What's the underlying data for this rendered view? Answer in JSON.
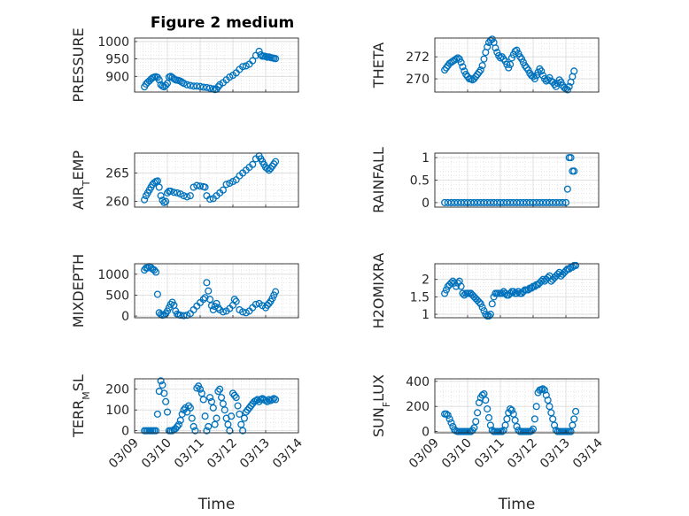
{
  "figure_title": "Figure 2 medium",
  "xlabel": "Time",
  "x_tick_labels": [
    "03/09",
    "03/10",
    "03/11",
    "03/12",
    "03/13",
    "03/14"
  ],
  "colors": {
    "marker": "#0072BD",
    "grid": "#d9d9d9",
    "axis": "#262626"
  },
  "chart_data": [
    {
      "type": "scatter",
      "name_label": "PRESSURE",
      "ylabel_parts": [
        "PRESSURE"
      ],
      "xlim": [
        0,
        5
      ],
      "ylim": [
        855,
        1010
      ],
      "yticks": [
        900,
        950,
        1000
      ],
      "grid": true,
      "x": [
        0.3,
        0.35,
        0.4,
        0.45,
        0.5,
        0.55,
        0.6,
        0.65,
        0.7,
        0.75,
        0.8,
        0.85,
        0.9,
        0.95,
        1.0,
        1.05,
        1.1,
        1.15,
        1.2,
        1.25,
        1.3,
        1.35,
        1.4,
        1.45,
        1.5,
        1.6,
        1.7,
        1.8,
        1.9,
        2.0,
        2.1,
        2.2,
        2.3,
        2.4,
        2.45,
        2.5,
        2.55,
        2.6,
        2.7,
        2.8,
        2.9,
        3.0,
        3.1,
        3.2,
        3.3,
        3.4,
        3.5,
        3.6,
        3.7,
        3.8,
        3.85,
        3.9,
        3.95,
        4.0,
        4.05,
        4.1,
        4.15,
        4.2,
        4.25,
        4.3
      ],
      "y": [
        870,
        878,
        883,
        887,
        892,
        896,
        898,
        899,
        897,
        890,
        876,
        872,
        870,
        874,
        880,
        898,
        900,
        897,
        893,
        890,
        889,
        888,
        886,
        883,
        880,
        876,
        874,
        872,
        872,
        871,
        869,
        868,
        866,
        864,
        862,
        863,
        870,
        876,
        882,
        890,
        898,
        903,
        910,
        920,
        928,
        930,
        935,
        945,
        960,
        972,
        962,
        958,
        958,
        957,
        955,
        956,
        954,
        953,
        952,
        951
      ]
    },
    {
      "type": "scatter",
      "name_label": "THETA",
      "ylabel_parts": [
        "THETA"
      ],
      "xlim": [
        0,
        5
      ],
      "ylim": [
        268.8,
        273.7
      ],
      "yticks": [
        270,
        272
      ],
      "grid": true,
      "x": [
        0.3,
        0.35,
        0.4,
        0.45,
        0.5,
        0.55,
        0.6,
        0.65,
        0.7,
        0.75,
        0.8,
        0.85,
        0.9,
        0.95,
        1.0,
        1.05,
        1.1,
        1.15,
        1.2,
        1.25,
        1.3,
        1.35,
        1.4,
        1.45,
        1.5,
        1.55,
        1.6,
        1.65,
        1.7,
        1.75,
        1.8,
        1.85,
        1.9,
        1.95,
        2.0,
        2.05,
        2.1,
        2.15,
        2.2,
        2.25,
        2.3,
        2.35,
        2.4,
        2.45,
        2.5,
        2.55,
        2.6,
        2.65,
        2.7,
        2.75,
        2.8,
        2.85,
        2.9,
        2.95,
        3.0,
        3.05,
        3.1,
        3.15,
        3.2,
        3.25,
        3.3,
        3.35,
        3.4,
        3.45,
        3.5,
        3.55,
        3.6,
        3.65,
        3.7,
        3.75,
        3.8,
        3.85,
        3.9,
        3.95,
        4.0,
        4.05,
        4.1,
        4.15,
        4.2,
        4.25
      ],
      "y": [
        270.8,
        271.0,
        271.2,
        271.4,
        271.5,
        271.6,
        271.7,
        271.8,
        271.9,
        271.8,
        271.5,
        271.1,
        270.7,
        270.4,
        270.2,
        270.0,
        270.0,
        269.9,
        270.0,
        270.2,
        270.4,
        270.6,
        270.8,
        271.2,
        271.8,
        272.4,
        272.9,
        273.3,
        273.5,
        273.6,
        273.3,
        272.8,
        272.4,
        272.1,
        271.9,
        272.0,
        271.8,
        271.6,
        271.3,
        271.0,
        271.3,
        271.9,
        272.2,
        272.5,
        272.6,
        272.3,
        272.0,
        271.8,
        271.5,
        271.2,
        271.0,
        270.8,
        270.5,
        270.3,
        270.2,
        270.0,
        270.3,
        270.6,
        270.9,
        270.7,
        270.3,
        270.0,
        269.8,
        269.9,
        270.1,
        269.8,
        269.7,
        269.5,
        269.3,
        269.6,
        269.9,
        269.7,
        269.4,
        269.2,
        269.1,
        269.0,
        269.3,
        269.7,
        270.2,
        270.7
      ]
    },
    {
      "type": "scatter",
      "name_label": "AIR_TEMP",
      "ylabel_parts": [
        "AIR",
        "T",
        "EMP"
      ],
      "xlim": [
        0,
        5
      ],
      "ylim": [
        259,
        268.5
      ],
      "yticks": [
        260,
        265
      ],
      "grid": true,
      "x": [
        0.3,
        0.35,
        0.4,
        0.45,
        0.5,
        0.55,
        0.6,
        0.65,
        0.7,
        0.75,
        0.8,
        0.85,
        0.9,
        0.95,
        1.0,
        1.05,
        1.1,
        1.2,
        1.3,
        1.4,
        1.5,
        1.6,
        1.7,
        1.8,
        1.9,
        2.0,
        2.1,
        2.15,
        2.2,
        2.3,
        2.4,
        2.5,
        2.6,
        2.7,
        2.8,
        2.9,
        3.0,
        3.1,
        3.2,
        3.3,
        3.4,
        3.5,
        3.6,
        3.7,
        3.8,
        3.85,
        3.9,
        3.95,
        4.0,
        4.05,
        4.1,
        4.15,
        4.2,
        4.25,
        4.3
      ],
      "y": [
        260.3,
        261,
        261.5,
        262,
        262.5,
        263,
        263.3,
        263.5,
        263.6,
        262.5,
        261,
        260.2,
        259.8,
        260,
        261.5,
        261.8,
        261.8,
        261.6,
        261.5,
        261.3,
        261.0,
        260.8,
        261,
        262.5,
        262.8,
        262.7,
        262.6,
        262.5,
        261,
        260.4,
        260.5,
        261,
        261.5,
        262,
        263,
        263.2,
        263.5,
        263.8,
        264.5,
        265,
        265.5,
        266,
        266.5,
        267.5,
        268,
        267.5,
        267,
        266.5,
        266,
        265.8,
        265.5,
        265.8,
        266.2,
        266.6,
        267
      ]
    },
    {
      "type": "scatter",
      "name_label": "RAINFALL",
      "ylabel_parts": [
        "RAINFALL"
      ],
      "xlim": [
        0,
        5
      ],
      "ylim": [
        -0.1,
        1.1
      ],
      "yticks": [
        0,
        0.5,
        1
      ],
      "grid": true,
      "x": [
        0.3,
        0.4,
        0.5,
        0.6,
        0.7,
        0.8,
        0.9,
        1.0,
        1.1,
        1.2,
        1.3,
        1.4,
        1.5,
        1.6,
        1.7,
        1.8,
        1.9,
        2.0,
        2.1,
        2.2,
        2.3,
        2.4,
        2.5,
        2.6,
        2.7,
        2.8,
        2.9,
        3.0,
        3.1,
        3.2,
        3.3,
        3.4,
        3.5,
        3.6,
        3.7,
        3.8,
        3.9,
        4.0,
        4.05,
        4.1,
        4.15,
        4.2,
        4.25
      ],
      "y": [
        0,
        0,
        0,
        0,
        0,
        0,
        0,
        0,
        0,
        0,
        0,
        0,
        0,
        0,
        0,
        0,
        0,
        0,
        0,
        0,
        0,
        0,
        0,
        0,
        0,
        0,
        0,
        0,
        0,
        0,
        0,
        0,
        0,
        0,
        0,
        0,
        0,
        0,
        0.3,
        1,
        1,
        0.7,
        0.7
      ]
    },
    {
      "type": "scatter",
      "name_label": "MIXDEPTH",
      "ylabel_parts": [
        "MIXDEPTH"
      ],
      "xlim": [
        0,
        5
      ],
      "ylim": [
        -40,
        1250
      ],
      "yticks": [
        0,
        500,
        1000
      ],
      "grid": true,
      "x": [
        0.3,
        0.35,
        0.4,
        0.45,
        0.5,
        0.55,
        0.6,
        0.65,
        0.7,
        0.75,
        0.8,
        0.85,
        0.9,
        0.95,
        1.0,
        1.05,
        1.1,
        1.15,
        1.2,
        1.25,
        1.3,
        1.35,
        1.4,
        1.5,
        1.6,
        1.7,
        1.8,
        1.9,
        2.0,
        2.1,
        2.15,
        2.2,
        2.25,
        2.3,
        2.35,
        2.4,
        2.45,
        2.5,
        2.55,
        2.6,
        2.7,
        2.8,
        2.9,
        3.0,
        3.05,
        3.1,
        3.2,
        3.3,
        3.4,
        3.5,
        3.6,
        3.7,
        3.8,
        3.9,
        4.0,
        4.05,
        4.1,
        4.15,
        4.2,
        4.25,
        4.3
      ],
      "y": [
        1100,
        1150,
        1150,
        1180,
        1160,
        1120,
        1100,
        1050,
        520,
        80,
        40,
        20,
        30,
        60,
        120,
        200,
        280,
        330,
        260,
        120,
        50,
        30,
        20,
        10,
        20,
        60,
        150,
        240,
        320,
        400,
        440,
        800,
        600,
        400,
        250,
        150,
        230,
        300,
        200,
        150,
        100,
        120,
        180,
        260,
        400,
        350,
        150,
        100,
        80,
        120,
        200,
        280,
        300,
        250,
        200,
        260,
        300,
        350,
        420,
        500,
        580
      ]
    },
    {
      "type": "scatter",
      "name_label": "H2OMIXRA",
      "ylabel_parts": [
        "H2OMIXRA"
      ],
      "xlim": [
        0,
        5
      ],
      "ylim": [
        0.9,
        2.45
      ],
      "yticks": [
        1,
        1.5,
        2
      ],
      "grid": true,
      "x": [
        0.3,
        0.35,
        0.4,
        0.45,
        0.5,
        0.55,
        0.6,
        0.65,
        0.7,
        0.75,
        0.8,
        0.85,
        0.9,
        0.95,
        1.0,
        1.05,
        1.1,
        1.15,
        1.2,
        1.25,
        1.3,
        1.35,
        1.4,
        1.45,
        1.5,
        1.55,
        1.6,
        1.65,
        1.7,
        1.75,
        1.8,
        1.85,
        1.9,
        1.95,
        2.0,
        2.05,
        2.1,
        2.15,
        2.2,
        2.25,
        2.3,
        2.35,
        2.4,
        2.45,
        2.5,
        2.55,
        2.6,
        2.65,
        2.7,
        2.75,
        2.8,
        2.85,
        2.9,
        2.95,
        3.0,
        3.05,
        3.1,
        3.15,
        3.2,
        3.25,
        3.3,
        3.35,
        3.4,
        3.45,
        3.5,
        3.55,
        3.6,
        3.65,
        3.7,
        3.75,
        3.8,
        3.85,
        3.9,
        3.95,
        4.0,
        4.05,
        4.1,
        4.15,
        4.2,
        4.25,
        4.3
      ],
      "y": [
        1.6,
        1.7,
        1.8,
        1.85,
        1.9,
        1.95,
        1.9,
        1.8,
        1.9,
        1.95,
        1.8,
        1.6,
        1.55,
        1.6,
        1.6,
        1.6,
        1.6,
        1.55,
        1.5,
        1.45,
        1.4,
        1.35,
        1.3,
        1.2,
        1.1,
        1.0,
        0.95,
        0.95,
        1.0,
        1.3,
        1.5,
        1.6,
        1.6,
        1.6,
        1.6,
        1.6,
        1.65,
        1.6,
        1.55,
        1.55,
        1.6,
        1.65,
        1.65,
        1.6,
        1.6,
        1.65,
        1.6,
        1.6,
        1.65,
        1.7,
        1.7,
        1.7,
        1.75,
        1.75,
        1.8,
        1.8,
        1.85,
        1.85,
        1.9,
        1.95,
        2.0,
        1.95,
        2.0,
        2.05,
        2.1,
        1.95,
        2.0,
        2.05,
        2.1,
        2.15,
        2.2,
        2.1,
        2.15,
        2.2,
        2.25,
        2.3,
        2.3,
        2.35,
        2.35,
        2.4,
        2.4
      ]
    },
    {
      "type": "scatter",
      "name_label": "TERR_MSL",
      "ylabel_parts": [
        "TERR",
        "M",
        "SL"
      ],
      "xlim": [
        0,
        5
      ],
      "ylim": [
        -10,
        250
      ],
      "yticks": [
        0,
        100,
        200
      ],
      "grid": true,
      "x": [
        0.3,
        0.35,
        0.4,
        0.45,
        0.5,
        0.55,
        0.6,
        0.65,
        0.7,
        0.75,
        0.8,
        0.85,
        0.9,
        0.95,
        1.0,
        1.05,
        1.1,
        1.15,
        1.2,
        1.25,
        1.3,
        1.35,
        1.4,
        1.45,
        1.5,
        1.55,
        1.6,
        1.65,
        1.7,
        1.75,
        1.8,
        1.85,
        1.9,
        1.95,
        2.0,
        2.05,
        2.1,
        2.15,
        2.2,
        2.25,
        2.3,
        2.35,
        2.4,
        2.45,
        2.5,
        2.55,
        2.6,
        2.65,
        2.7,
        2.75,
        2.8,
        2.85,
        2.9,
        2.95,
        3.0,
        3.05,
        3.1,
        3.15,
        3.2,
        3.25,
        3.3,
        3.35,
        3.4,
        3.45,
        3.5,
        3.55,
        3.6,
        3.65,
        3.7,
        3.75,
        3.8,
        3.85,
        3.9,
        3.95,
        4.0,
        4.05,
        4.1,
        4.15,
        4.2,
        4.25,
        4.3
      ],
      "y": [
        0,
        0,
        0,
        0,
        0,
        0,
        0,
        0,
        80,
        190,
        240,
        220,
        180,
        140,
        90,
        0,
        0,
        0,
        5,
        10,
        20,
        30,
        50,
        80,
        100,
        110,
        90,
        120,
        110,
        60,
        20,
        0,
        205,
        215,
        200,
        180,
        150,
        70,
        0,
        20,
        160,
        140,
        110,
        30,
        60,
        190,
        200,
        160,
        130,
        100,
        60,
        30,
        0,
        70,
        180,
        170,
        160,
        120,
        80,
        30,
        0,
        60,
        90,
        100,
        110,
        120,
        130,
        140,
        145,
        150,
        140,
        150,
        155,
        150,
        145,
        140,
        150,
        145,
        150,
        155,
        150
      ]
    },
    {
      "type": "scatter",
      "name_label": "SUN_FLUX",
      "ylabel_parts": [
        "SUN",
        "F",
        "LUX"
      ],
      "xlim": [
        0,
        5
      ],
      "ylim": [
        -10,
        420
      ],
      "yticks": [
        0,
        200,
        400
      ],
      "grid": true,
      "x": [
        0.3,
        0.35,
        0.4,
        0.45,
        0.5,
        0.55,
        0.6,
        0.65,
        0.7,
        0.75,
        0.8,
        0.85,
        0.9,
        0.95,
        1.0,
        1.05,
        1.1,
        1.15,
        1.2,
        1.25,
        1.3,
        1.35,
        1.4,
        1.45,
        1.5,
        1.55,
        1.6,
        1.65,
        1.7,
        1.75,
        1.8,
        1.85,
        1.9,
        1.95,
        2.0,
        2.05,
        2.1,
        2.15,
        2.2,
        2.25,
        2.3,
        2.35,
        2.4,
        2.45,
        2.5,
        2.55,
        2.6,
        2.65,
        2.7,
        2.75,
        2.8,
        2.85,
        2.9,
        2.95,
        3.0,
        3.05,
        3.1,
        3.15,
        3.2,
        3.25,
        3.3,
        3.35,
        3.4,
        3.45,
        3.5,
        3.55,
        3.6,
        3.65,
        3.7,
        3.75,
        3.8,
        3.85,
        3.9,
        3.95,
        4.0,
        4.05,
        4.1,
        4.15,
        4.2,
        4.25,
        4.3
      ],
      "y": [
        140,
        140,
        130,
        100,
        70,
        40,
        15,
        5,
        0,
        0,
        0,
        0,
        0,
        0,
        0,
        0,
        0,
        10,
        30,
        80,
        150,
        230,
        270,
        290,
        300,
        250,
        180,
        110,
        50,
        10,
        0,
        0,
        0,
        0,
        0,
        0,
        10,
        50,
        100,
        150,
        180,
        170,
        140,
        90,
        40,
        10,
        0,
        0,
        0,
        0,
        0,
        0,
        0,
        5,
        20,
        100,
        200,
        310,
        330,
        335,
        340,
        330,
        290,
        250,
        200,
        150,
        100,
        50,
        10,
        0,
        0,
        0,
        0,
        0,
        0,
        0,
        0,
        0,
        50,
        100,
        160
      ]
    }
  ]
}
